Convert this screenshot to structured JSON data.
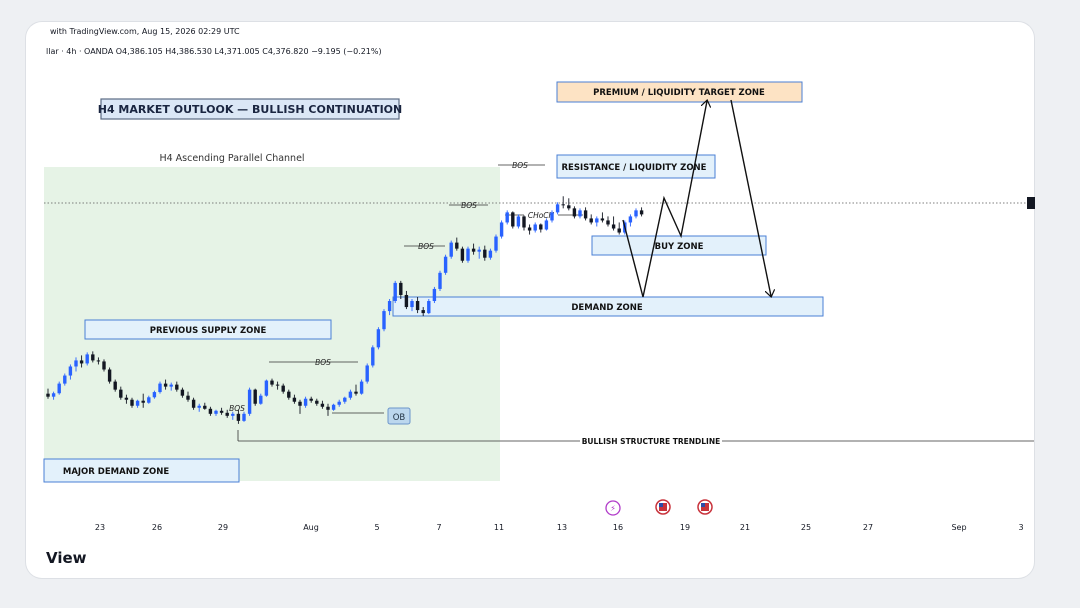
{
  "header": {
    "published": "with TradingView.com, Aug 15, 2026 02:29 UTC",
    "symbol_line": "llar · 4h · OANDA  O4,386.105  H4,386.530  L4,371.005  C4,376.820  −9.195 (−0.21%)"
  },
  "brand": "View",
  "colors": {
    "bull": "#2962ff",
    "bear": "#131722",
    "zone_fill": "#e3f1fb",
    "zone_border": "#4a7fd4",
    "target_fill": "#fde3c4",
    "channel_fill": "#e6f3e6"
  },
  "chart_data": {
    "type": "candlestick",
    "title": "H4 MARKET OUTLOOK — BULLISH CONTINUATION",
    "subtitle": "H4 Ascending Parallel Channel",
    "x_ticks": [
      "23",
      "26",
      "29",
      "Aug",
      "5",
      "7",
      "11",
      "13",
      "16",
      "19",
      "21",
      "25",
      "27",
      "Sep",
      "3"
    ],
    "current_price": 4376.82,
    "zones": [
      {
        "label": "PREMIUM / LIQUIDITY TARGET ZONE",
        "kind": "target"
      },
      {
        "label": "RESISTANCE / LIQUIDITY ZONE",
        "kind": "resistance"
      },
      {
        "label": "BUY ZONE",
        "kind": "buy"
      },
      {
        "label": "DEMAND ZONE",
        "kind": "demand"
      },
      {
        "label": "PREVIOUS SUPPLY ZONE",
        "kind": "supply"
      },
      {
        "label": "MAJOR DEMAND ZONE",
        "kind": "major-demand"
      },
      {
        "label": "OB",
        "kind": "order-block"
      }
    ],
    "annotations": [
      "BOS",
      "BOS",
      "BOS",
      "BOS",
      "BOS",
      "CHoCH"
    ],
    "trendline_label": "BULLISH STRUCTURE TRENDLINE",
    "projection_path": [
      "pullback to buy zone",
      "push higher",
      "dip to demand zone",
      "rally to premium target zone",
      "decline back to demand zone"
    ],
    "candles": [
      {
        "o": 3230,
        "h": 3255,
        "l": 3205,
        "c": 3215
      },
      {
        "o": 3215,
        "h": 3240,
        "l": 3200,
        "c": 3232
      },
      {
        "o": 3232,
        "h": 3290,
        "l": 3225,
        "c": 3280
      },
      {
        "o": 3280,
        "h": 3330,
        "l": 3270,
        "c": 3320
      },
      {
        "o": 3320,
        "h": 3375,
        "l": 3300,
        "c": 3365
      },
      {
        "o": 3365,
        "h": 3410,
        "l": 3340,
        "c": 3395
      },
      {
        "o": 3395,
        "h": 3420,
        "l": 3360,
        "c": 3380
      },
      {
        "o": 3380,
        "h": 3435,
        "l": 3370,
        "c": 3425
      },
      {
        "o": 3425,
        "h": 3440,
        "l": 3385,
        "c": 3395
      },
      {
        "o": 3395,
        "h": 3410,
        "l": 3375,
        "c": 3390
      },
      {
        "o": 3390,
        "h": 3400,
        "l": 3340,
        "c": 3350
      },
      {
        "o": 3350,
        "h": 3360,
        "l": 3280,
        "c": 3290
      },
      {
        "o": 3290,
        "h": 3300,
        "l": 3240,
        "c": 3250
      },
      {
        "o": 3250,
        "h": 3265,
        "l": 3200,
        "c": 3210
      },
      {
        "o": 3210,
        "h": 3225,
        "l": 3180,
        "c": 3200
      },
      {
        "o": 3200,
        "h": 3210,
        "l": 3160,
        "c": 3170
      },
      {
        "o": 3170,
        "h": 3200,
        "l": 3160,
        "c": 3195
      },
      {
        "o": 3195,
        "h": 3230,
        "l": 3160,
        "c": 3185
      },
      {
        "o": 3185,
        "h": 3220,
        "l": 3180,
        "c": 3212
      },
      {
        "o": 3212,
        "h": 3245,
        "l": 3205,
        "c": 3238
      },
      {
        "o": 3238,
        "h": 3290,
        "l": 3230,
        "c": 3280
      },
      {
        "o": 3280,
        "h": 3300,
        "l": 3250,
        "c": 3265
      },
      {
        "o": 3265,
        "h": 3285,
        "l": 3245,
        "c": 3275
      },
      {
        "o": 3275,
        "h": 3290,
        "l": 3240,
        "c": 3250
      },
      {
        "o": 3250,
        "h": 3260,
        "l": 3210,
        "c": 3220
      },
      {
        "o": 3220,
        "h": 3240,
        "l": 3190,
        "c": 3200
      },
      {
        "o": 3200,
        "h": 3210,
        "l": 3150,
        "c": 3160
      },
      {
        "o": 3160,
        "h": 3180,
        "l": 3140,
        "c": 3170
      },
      {
        "o": 3170,
        "h": 3185,
        "l": 3150,
        "c": 3155
      },
      {
        "o": 3155,
        "h": 3165,
        "l": 3120,
        "c": 3130
      },
      {
        "o": 3130,
        "h": 3150,
        "l": 3120,
        "c": 3145
      },
      {
        "o": 3145,
        "h": 3160,
        "l": 3125,
        "c": 3135
      },
      {
        "o": 3135,
        "h": 3150,
        "l": 3110,
        "c": 3120
      },
      {
        "o": 3120,
        "h": 3140,
        "l": 3100,
        "c": 3130
      },
      {
        "o": 3130,
        "h": 3150,
        "l": 3080,
        "c": 3095
      },
      {
        "o": 3095,
        "h": 3140,
        "l": 3090,
        "c": 3130
      },
      {
        "o": 3130,
        "h": 3260,
        "l": 3120,
        "c": 3250
      },
      {
        "o": 3250,
        "h": 3255,
        "l": 3170,
        "c": 3180
      },
      {
        "o": 3180,
        "h": 3230,
        "l": 3175,
        "c": 3220
      },
      {
        "o": 3220,
        "h": 3300,
        "l": 3215,
        "c": 3295
      },
      {
        "o": 3295,
        "h": 3305,
        "l": 3265,
        "c": 3275
      },
      {
        "o": 3275,
        "h": 3290,
        "l": 3250,
        "c": 3270
      },
      {
        "o": 3270,
        "h": 3280,
        "l": 3230,
        "c": 3240
      },
      {
        "o": 3240,
        "h": 3250,
        "l": 3200,
        "c": 3210
      },
      {
        "o": 3210,
        "h": 3225,
        "l": 3180,
        "c": 3190
      },
      {
        "o": 3190,
        "h": 3200,
        "l": 3130,
        "c": 3170
      },
      {
        "o": 3170,
        "h": 3215,
        "l": 3160,
        "c": 3205
      },
      {
        "o": 3205,
        "h": 3215,
        "l": 3185,
        "c": 3195
      },
      {
        "o": 3195,
        "h": 3205,
        "l": 3170,
        "c": 3180
      },
      {
        "o": 3180,
        "h": 3195,
        "l": 3155,
        "c": 3165
      },
      {
        "o": 3165,
        "h": 3180,
        "l": 3120,
        "c": 3150
      },
      {
        "o": 3150,
        "h": 3180,
        "l": 3145,
        "c": 3175
      },
      {
        "o": 3175,
        "h": 3200,
        "l": 3165,
        "c": 3190
      },
      {
        "o": 3190,
        "h": 3215,
        "l": 3180,
        "c": 3210
      },
      {
        "o": 3210,
        "h": 3250,
        "l": 3200,
        "c": 3240
      },
      {
        "o": 3240,
        "h": 3275,
        "l": 3220,
        "c": 3230
      },
      {
        "o": 3230,
        "h": 3300,
        "l": 3225,
        "c": 3290
      },
      {
        "o": 3290,
        "h": 3380,
        "l": 3280,
        "c": 3370
      },
      {
        "o": 3370,
        "h": 3470,
        "l": 3360,
        "c": 3460
      },
      {
        "o": 3460,
        "h": 3560,
        "l": 3450,
        "c": 3550
      },
      {
        "o": 3550,
        "h": 3650,
        "l": 3540,
        "c": 3640
      },
      {
        "o": 3640,
        "h": 3700,
        "l": 3620,
        "c": 3690
      },
      {
        "o": 3690,
        "h": 3790,
        "l": 3680,
        "c": 3780
      },
      {
        "o": 3780,
        "h": 3790,
        "l": 3700,
        "c": 3720
      },
      {
        "o": 3720,
        "h": 3740,
        "l": 3650,
        "c": 3660
      },
      {
        "o": 3660,
        "h": 3700,
        "l": 3640,
        "c": 3690
      },
      {
        "o": 3690,
        "h": 3710,
        "l": 3630,
        "c": 3645
      },
      {
        "o": 3645,
        "h": 3660,
        "l": 3615,
        "c": 3630
      },
      {
        "o": 3630,
        "h": 3700,
        "l": 3625,
        "c": 3690
      },
      {
        "o": 3690,
        "h": 3760,
        "l": 3680,
        "c": 3750
      },
      {
        "o": 3750,
        "h": 3840,
        "l": 3740,
        "c": 3830
      },
      {
        "o": 3830,
        "h": 3920,
        "l": 3820,
        "c": 3910
      },
      {
        "o": 3910,
        "h": 3990,
        "l": 3900,
        "c": 3980
      },
      {
        "o": 3980,
        "h": 4005,
        "l": 3940,
        "c": 3950
      },
      {
        "o": 3950,
        "h": 3960,
        "l": 3880,
        "c": 3890
      },
      {
        "o": 3890,
        "h": 3960,
        "l": 3880,
        "c": 3950
      },
      {
        "o": 3950,
        "h": 3975,
        "l": 3920,
        "c": 3935
      },
      {
        "o": 3935,
        "h": 3960,
        "l": 3900,
        "c": 3945
      },
      {
        "o": 3945,
        "h": 3965,
        "l": 3890,
        "c": 3905
      },
      {
        "o": 3905,
        "h": 3950,
        "l": 3895,
        "c": 3940
      },
      {
        "o": 3940,
        "h": 4020,
        "l": 3930,
        "c": 4010
      },
      {
        "o": 4010,
        "h": 4090,
        "l": 4000,
        "c": 4080
      },
      {
        "o": 4080,
        "h": 4140,
        "l": 4070,
        "c": 4130
      },
      {
        "o": 4130,
        "h": 4135,
        "l": 4050,
        "c": 4060
      },
      {
        "o": 4060,
        "h": 4120,
        "l": 4050,
        "c": 4110
      },
      {
        "o": 4110,
        "h": 4115,
        "l": 4040,
        "c": 4055
      },
      {
        "o": 4055,
        "h": 4070,
        "l": 4020,
        "c": 4040
      },
      {
        "o": 4040,
        "h": 4080,
        "l": 4030,
        "c": 4070
      },
      {
        "o": 4070,
        "h": 4075,
        "l": 4030,
        "c": 4045
      },
      {
        "o": 4045,
        "h": 4100,
        "l": 4040,
        "c": 4090
      },
      {
        "o": 4090,
        "h": 4140,
        "l": 4080,
        "c": 4130
      },
      {
        "o": 4130,
        "h": 4180,
        "l": 4120,
        "c": 4170
      },
      {
        "o": 4170,
        "h": 4210,
        "l": 4150,
        "c": 4165
      },
      {
        "o": 4165,
        "h": 4200,
        "l": 4140,
        "c": 4150
      },
      {
        "o": 4150,
        "h": 4160,
        "l": 4100,
        "c": 4110
      },
      {
        "o": 4110,
        "h": 4150,
        "l": 4100,
        "c": 4140
      },
      {
        "o": 4140,
        "h": 4155,
        "l": 4090,
        "c": 4100
      },
      {
        "o": 4100,
        "h": 4120,
        "l": 4070,
        "c": 4080
      },
      {
        "o": 4080,
        "h": 4110,
        "l": 4060,
        "c": 4100
      },
      {
        "o": 4100,
        "h": 4130,
        "l": 4080,
        "c": 4090
      },
      {
        "o": 4090,
        "h": 4110,
        "l": 4060,
        "c": 4070
      },
      {
        "o": 4070,
        "h": 4110,
        "l": 4040,
        "c": 4050
      },
      {
        "o": 4050,
        "h": 4080,
        "l": 4020,
        "c": 4030
      },
      {
        "o": 4030,
        "h": 4090,
        "l": 4020,
        "c": 4080
      },
      {
        "o": 4080,
        "h": 4120,
        "l": 4060,
        "c": 4110
      },
      {
        "o": 4110,
        "h": 4150,
        "l": 4100,
        "c": 4140
      },
      {
        "o": 4140,
        "h": 4155,
        "l": 4110,
        "c": 4120
      }
    ]
  }
}
